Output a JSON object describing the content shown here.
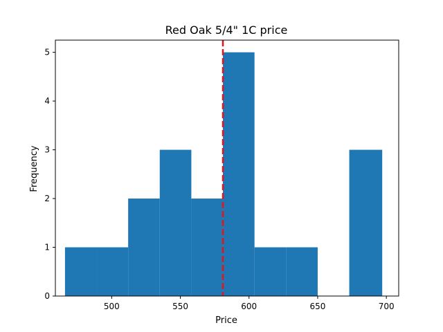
{
  "chart_data": {
    "type": "histogram",
    "title": "Red Oak 5/4\" 1C price",
    "xlabel": "Price",
    "ylabel": "Frequency",
    "xlim": [
      459,
      709
    ],
    "ylim": [
      0,
      5.25
    ],
    "bins": [
      {
        "start": 466,
        "end": 489,
        "count": 1
      },
      {
        "start": 489,
        "end": 512,
        "count": 1
      },
      {
        "start": 512,
        "end": 535,
        "count": 2
      },
      {
        "start": 535,
        "end": 558,
        "count": 3
      },
      {
        "start": 558,
        "end": 581,
        "count": 2
      },
      {
        "start": 581,
        "end": 604,
        "count": 5
      },
      {
        "start": 604,
        "end": 627,
        "count": 1
      },
      {
        "start": 627,
        "end": 650,
        "count": 1
      },
      {
        "start": 650,
        "end": 673,
        "count": 0
      },
      {
        "start": 673,
        "end": 697,
        "count": 3
      }
    ],
    "vline": {
      "x": 581,
      "style": "dashed",
      "color": "#e8141a"
    },
    "x_ticks": [
      "500",
      "550",
      "600",
      "650",
      "700"
    ],
    "y_ticks": [
      "0",
      "1",
      "2",
      "3",
      "4",
      "5"
    ],
    "bar_color": "#1f77b4",
    "grid": false,
    "legend": "none"
  }
}
